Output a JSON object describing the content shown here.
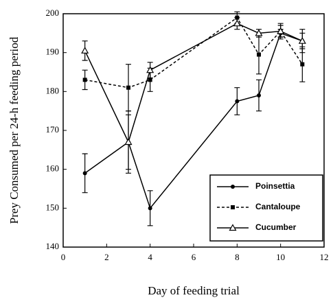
{
  "chart_data": {
    "type": "line",
    "xlabel": "Day of feeding trial",
    "ylabel": "Prey Consumed per 24-h feeding period",
    "xlim": [
      0,
      12
    ],
    "xticks": [
      0,
      2,
      4,
      6,
      8,
      10,
      12
    ],
    "ylim": [
      140,
      200
    ],
    "yticks": [
      140,
      150,
      160,
      170,
      180,
      190,
      200
    ],
    "x": [
      1,
      3,
      4,
      8,
      9,
      10,
      11
    ],
    "legend": "lower right",
    "series": [
      {
        "name": "Poinsettia",
        "color": "#000000",
        "marker": "circle",
        "line_style": "solid",
        "values": [
          159,
          167,
          150,
          177.5,
          179,
          195,
          193
        ],
        "errors": [
          5,
          8,
          4.5,
          3.5,
          4,
          1,
          2
        ]
      },
      {
        "name": "Cantaloupe",
        "color": "#000000",
        "marker": "square",
        "line_style": "dashed",
        "values": [
          183,
          181,
          183,
          199,
          189.5,
          195.5,
          187
        ],
        "errors": [
          2.5,
          6,
          3,
          1.5,
          5,
          2,
          4.5
        ]
      },
      {
        "name": "Cucumber",
        "color": "#000000",
        "marker": "triangle",
        "line_style": "solid",
        "values": [
          190.5,
          167,
          185.5,
          197.5,
          195,
          195.5,
          193
        ],
        "errors": [
          2.5,
          7,
          2,
          1.5,
          1,
          1.5,
          3
        ]
      }
    ]
  }
}
